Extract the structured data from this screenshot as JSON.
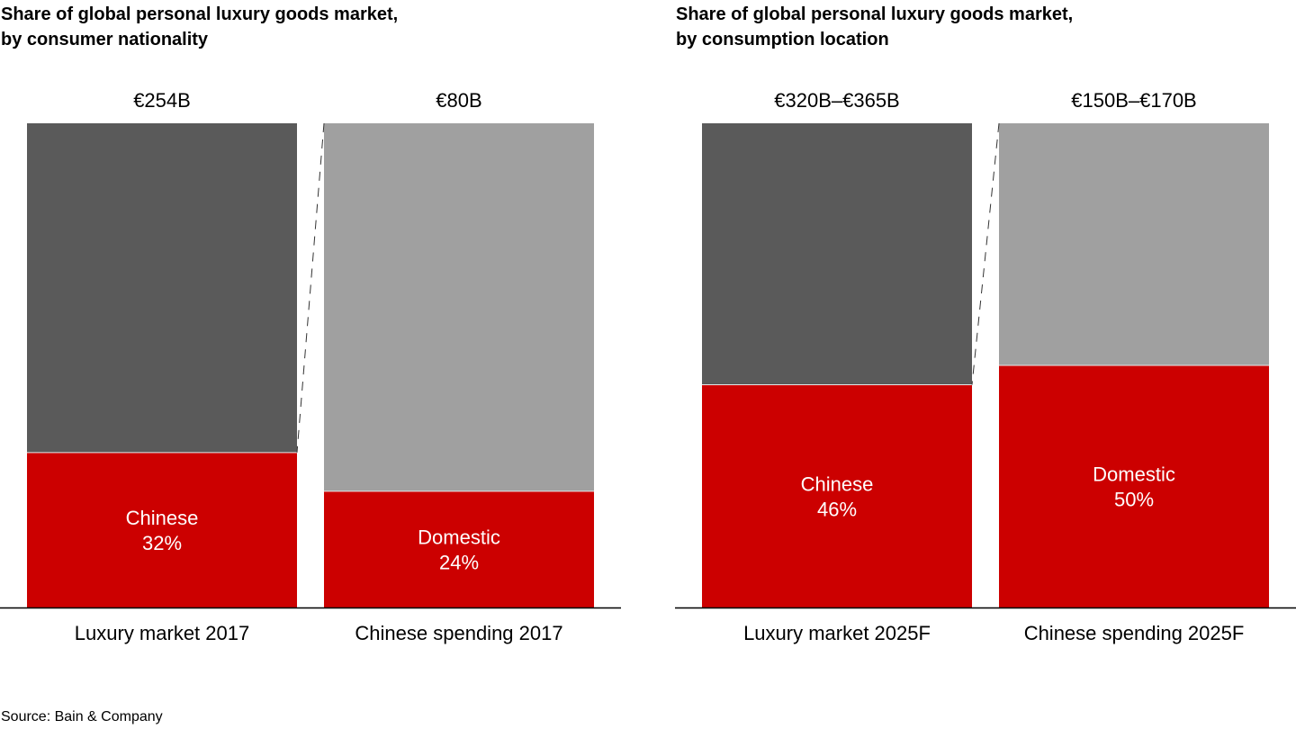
{
  "source": "Source: Bain & Company",
  "colors": {
    "highlight": "#CC0000",
    "rest_dark": "#5A5A5A",
    "rest_light": "#A0A0A0",
    "axis": "#000000",
    "label_inside": "#FFFFFF"
  },
  "chart_data": [
    {
      "type": "bar",
      "stacked": true,
      "percent": true,
      "title": [
        "Share of global personal luxury goods market,",
        "by consumer nationality"
      ],
      "categories": [
        "Luxury market 2017",
        "Chinese spending 2017"
      ],
      "totals": [
        "€254B",
        "€80B"
      ],
      "segments": [
        {
          "category": "Luxury market 2017",
          "name": "Chinese",
          "value": 32,
          "label": "Chinese",
          "value_label": "32%",
          "rest_style": "dark"
        },
        {
          "category": "Chinese spending 2017",
          "name": "Domestic",
          "value": 24,
          "label": "Domestic",
          "value_label": "24%",
          "rest_style": "light"
        }
      ],
      "connector": "dashed line from top of second bar to top of Chinese share in first bar",
      "ylim": [
        0,
        100
      ],
      "grid": false,
      "legend": "none"
    },
    {
      "type": "bar",
      "stacked": true,
      "percent": true,
      "title": [
        "Share of global personal luxury goods market,",
        "by consumption location"
      ],
      "categories": [
        "Luxury market 2025F",
        "Chinese spending 2025F"
      ],
      "totals": [
        "€320B–€365B",
        "€150B–€170B"
      ],
      "segments": [
        {
          "category": "Luxury market 2025F",
          "name": "Chinese",
          "value": 46,
          "label": "Chinese",
          "value_label": "46%",
          "rest_style": "dark"
        },
        {
          "category": "Chinese spending 2025F",
          "name": "Domestic",
          "value": 50,
          "label": "Domestic",
          "value_label": "50%",
          "rest_style": "light"
        }
      ],
      "connector": "dashed line from top of second bar to top of Chinese share in first bar",
      "ylim": [
        0,
        100
      ],
      "grid": false,
      "legend": "none"
    }
  ]
}
